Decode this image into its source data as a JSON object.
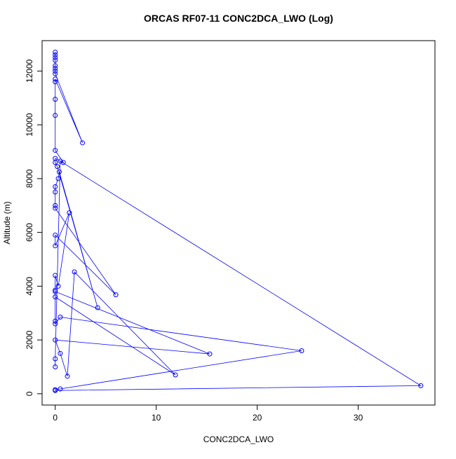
{
  "chart_data": {
    "type": "line",
    "title": "ORCAS RF07-11 CONC2DCA_LWO (Log)",
    "x_label": "CONC2DCA_LWO",
    "y_label": "Altitude (m)",
    "color": "#0000ff",
    "markers": true,
    "x": [
      0,
      0,
      0,
      0,
      0,
      0,
      0,
      0,
      2.7,
      0,
      0,
      0,
      0,
      0,
      0.8,
      0,
      0,
      0.2,
      4.2,
      0.4,
      0.3,
      0,
      0,
      0,
      0,
      6.0,
      0,
      0,
      1.4,
      0.3,
      0,
      0,
      0,
      11.9,
      1.9,
      1.2,
      0.5,
      0,
      15.3,
      0,
      0,
      0,
      0.5,
      24.4,
      0.5,
      0,
      0,
      36.2,
      0.5,
      0,
      0
    ],
    "values": [
      12700,
      12600,
      12500,
      12400,
      12200,
      12100,
      12000,
      11900,
      9330,
      11700,
      11600,
      10950,
      10350,
      9050,
      8600,
      8750,
      8600,
      8450,
      3200,
      8250,
      8000,
      7700,
      7500,
      7000,
      6900,
      3680,
      5900,
      5500,
      6730,
      4000,
      4400,
      3850,
      3600,
      700,
      4530,
      650,
      1500,
      2000,
      1480,
      3800,
      2700,
      2600,
      2850,
      1600,
      180,
      150,
      120,
      300,
      8650,
      1300,
      1000
    ],
    "xlim": [
      -1.3,
      37.6
    ],
    "ylim": [
      -420,
      13130
    ],
    "xticks": [
      0,
      10,
      20,
      30
    ],
    "yticks": [
      0,
      2000,
      4000,
      6000,
      8000,
      10000,
      12000
    ]
  }
}
